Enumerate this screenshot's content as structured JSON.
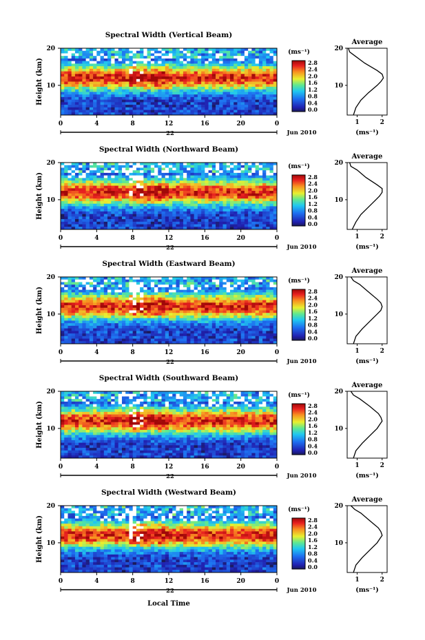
{
  "figure": {
    "xlabel": "Local Time",
    "ylabel": "Height (km)",
    "date_label": "Jun 2010",
    "day_label": "22",
    "x_ticks": [
      "0",
      "4",
      "8",
      "12",
      "16",
      "20",
      "0"
    ],
    "y_ticks": [
      "20",
      "10"
    ],
    "colorbar_unit": "(ms⁻¹)",
    "colorbar_ticks": [
      "2.8",
      "2.4",
      "2.0",
      "1.6",
      "1.2",
      "0.8",
      "0.4",
      "0.0"
    ],
    "average_title": "Average",
    "average_unit": "(ms⁻¹)",
    "average_x_ticks": [
      "1",
      "2"
    ]
  },
  "chart_data": [
    {
      "type": "heatmap",
      "title": "Spectral Width (Vertical Beam)",
      "xlabel": "Local Time",
      "ylabel": "Height (km)",
      "xlim": [
        0,
        24
      ],
      "ylim": [
        2,
        20
      ],
      "zlim": [
        0.0,
        2.8
      ],
      "colorbar_label": "(ms⁻¹)",
      "average_profile": {
        "title": "Average",
        "xlabel": "(ms⁻¹)",
        "xlim": [
          0.6,
          2.2
        ],
        "height": [
          2,
          4,
          6,
          8,
          10,
          11,
          12,
          13,
          14,
          16,
          18,
          19,
          20
        ],
        "value": [
          0.85,
          0.95,
          1.15,
          1.45,
          1.8,
          1.95,
          2.05,
          2.0,
          1.8,
          1.3,
          0.9,
          0.7,
          0.65
        ]
      }
    },
    {
      "type": "heatmap",
      "title": "Spectral Width (Northward Beam)",
      "xlabel": "Local Time",
      "ylabel": "Height (km)",
      "xlim": [
        0,
        24
      ],
      "ylim": [
        2,
        20
      ],
      "zlim": [
        0.0,
        2.8
      ],
      "colorbar_label": "(ms⁻¹)",
      "average_profile": {
        "title": "Average",
        "xlabel": "(ms⁻¹)",
        "xlim": [
          0.6,
          2.2
        ],
        "height": [
          2,
          4,
          6,
          8,
          10,
          11,
          12,
          13,
          14,
          16,
          18,
          19,
          20
        ],
        "value": [
          0.8,
          0.95,
          1.15,
          1.45,
          1.75,
          1.9,
          2.0,
          2.0,
          1.8,
          1.35,
          1.0,
          0.75,
          0.7
        ]
      }
    },
    {
      "type": "heatmap",
      "title": "Spectral Width (Eastward Beam)",
      "xlabel": "Local Time",
      "ylabel": "Height (km)",
      "xlim": [
        0,
        24
      ],
      "ylim": [
        2,
        20
      ],
      "zlim": [
        0.0,
        2.8
      ],
      "colorbar_label": "(ms⁻¹)",
      "average_profile": {
        "title": "Average",
        "xlabel": "(ms⁻¹)",
        "xlim": [
          0.6,
          2.2
        ],
        "height": [
          2,
          4,
          6,
          8,
          10,
          11,
          12,
          13,
          14,
          16,
          18,
          19,
          20
        ],
        "value": [
          0.85,
          0.95,
          1.2,
          1.5,
          1.8,
          1.95,
          2.0,
          1.95,
          1.8,
          1.45,
          1.1,
          0.85,
          0.75
        ]
      }
    },
    {
      "type": "heatmap",
      "title": "Spectral Width (Southward Beam)",
      "xlabel": "Local Time",
      "ylabel": "Height (km)",
      "xlim": [
        0,
        24
      ],
      "ylim": [
        2,
        20
      ],
      "zlim": [
        0.0,
        2.8
      ],
      "colorbar_label": "(ms⁻¹)",
      "average_profile": {
        "title": "Average",
        "xlabel": "(ms⁻¹)",
        "xlim": [
          0.6,
          2.2
        ],
        "height": [
          2,
          4,
          6,
          8,
          10,
          11,
          12,
          13,
          14,
          16,
          18,
          19,
          20
        ],
        "value": [
          0.85,
          0.95,
          1.2,
          1.5,
          1.8,
          1.9,
          2.0,
          1.95,
          1.85,
          1.5,
          1.1,
          0.85,
          0.75
        ]
      }
    },
    {
      "type": "heatmap",
      "title": "Spectral Width (Westward Beam)",
      "xlabel": "Local Time",
      "ylabel": "Height (km)",
      "xlim": [
        0,
        24
      ],
      "ylim": [
        2,
        20
      ],
      "zlim": [
        0.0,
        2.8
      ],
      "colorbar_label": "(ms⁻¹)",
      "average_profile": {
        "title": "Average",
        "xlabel": "(ms⁻¹)",
        "xlim": [
          0.6,
          2.2
        ],
        "height": [
          2,
          4,
          6,
          8,
          10,
          11,
          12,
          13,
          14,
          16,
          18,
          19,
          20
        ],
        "value": [
          0.85,
          0.95,
          1.2,
          1.5,
          1.8,
          1.9,
          2.0,
          1.95,
          1.85,
          1.5,
          1.15,
          0.9,
          0.75
        ]
      }
    }
  ]
}
